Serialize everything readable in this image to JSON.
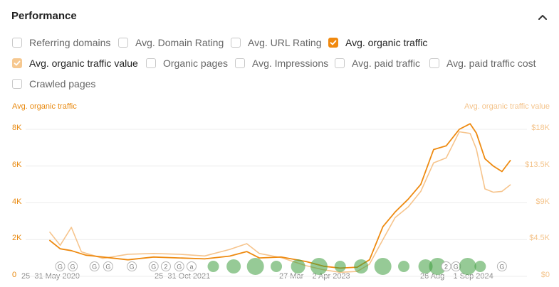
{
  "panel": {
    "title": "Performance"
  },
  "metrics": [
    {
      "label": "Referring domains",
      "checked": false
    },
    {
      "label": "Avg. Domain Rating",
      "checked": false
    },
    {
      "label": "Avg. URL Rating",
      "checked": false
    },
    {
      "label": "Avg. organic traffic",
      "checked": true
    },
    {
      "label": "Avg. organic traffic value",
      "checked": true
    },
    {
      "label": "Organic pages",
      "checked": false
    },
    {
      "label": "Avg. Impressions",
      "checked": false
    },
    {
      "label": "Avg. paid traffic",
      "checked": false
    },
    {
      "label": "Avg. paid traffic cost",
      "checked": false
    },
    {
      "label": "Crawled pages",
      "checked": false
    }
  ],
  "colors": {
    "traffic": "#ee8a10",
    "traffic_value": "#f6c48c",
    "annotation_green": "#3f9e3f"
  },
  "chart_data": {
    "type": "line",
    "y_left_label": "Avg. organic traffic",
    "y_right_label": "Avg. organic traffic value",
    "y_left_ticks": [
      "0",
      "2K",
      "4K",
      "6K",
      "8K"
    ],
    "y_right_ticks": [
      "$0",
      "$4.5K",
      "$9K",
      "$13.5K",
      "$18K"
    ],
    "ylim_left": [
      0,
      8000
    ],
    "ylim_right": [
      0,
      18000
    ],
    "x_labels": [
      "25–31 May 2020",
      "25–31 Oct 2021",
      "27 Mar – 2 Apr 2023",
      "26 Aug – 1 Sep 2024"
    ],
    "xlim": [
      "2020-05-25",
      "2024-12-30"
    ],
    "grid": true,
    "series": [
      {
        "name": "Avg. organic traffic",
        "axis": "left",
        "points": [
          [
            "2020-05-25",
            1950
          ],
          [
            "2020-07-01",
            1500
          ],
          [
            "2020-08-10",
            1400
          ],
          [
            "2020-10-01",
            1150
          ],
          [
            "2020-12-01",
            1050
          ],
          [
            "2021-03-01",
            900
          ],
          [
            "2021-06-01",
            1050
          ],
          [
            "2021-09-01",
            1000
          ],
          [
            "2021-12-01",
            950
          ],
          [
            "2022-03-01",
            1100
          ],
          [
            "2022-05-01",
            1350
          ],
          [
            "2022-06-15",
            1000
          ],
          [
            "2022-09-01",
            1050
          ],
          [
            "2022-12-01",
            800
          ],
          [
            "2023-02-01",
            550
          ],
          [
            "2023-04-01",
            450
          ],
          [
            "2023-06-01",
            500
          ],
          [
            "2023-07-15",
            900
          ],
          [
            "2023-09-01",
            2700
          ],
          [
            "2023-10-15",
            3500
          ],
          [
            "2023-12-01",
            4200
          ],
          [
            "2024-01-15",
            5000
          ],
          [
            "2024-03-01",
            6900
          ],
          [
            "2024-04-15",
            7100
          ],
          [
            "2024-06-01",
            8000
          ],
          [
            "2024-07-10",
            8300
          ],
          [
            "2024-08-01",
            7800
          ],
          [
            "2024-09-01",
            6400
          ],
          [
            "2024-10-01",
            6000
          ],
          [
            "2024-11-01",
            5700
          ],
          [
            "2024-12-01",
            6300
          ]
        ]
      },
      {
        "name": "Avg. organic traffic value",
        "axis": "right",
        "points": [
          [
            "2020-05-25",
            5400
          ],
          [
            "2020-07-01",
            3800
          ],
          [
            "2020-08-10",
            6000
          ],
          [
            "2020-09-15",
            3000
          ],
          [
            "2020-12-01",
            2200
          ],
          [
            "2021-03-01",
            2700
          ],
          [
            "2021-06-01",
            2800
          ],
          [
            "2021-09-01",
            2700
          ],
          [
            "2021-12-01",
            2500
          ],
          [
            "2022-03-01",
            3300
          ],
          [
            "2022-05-01",
            4000
          ],
          [
            "2022-06-15",
            2800
          ],
          [
            "2022-09-01",
            2300
          ],
          [
            "2022-12-01",
            1300
          ],
          [
            "2023-02-01",
            800
          ],
          [
            "2023-04-01",
            500
          ],
          [
            "2023-06-01",
            600
          ],
          [
            "2023-07-15",
            1500
          ],
          [
            "2023-09-01",
            4500
          ],
          [
            "2023-10-15",
            7200
          ],
          [
            "2023-12-01",
            8500
          ],
          [
            "2024-01-15",
            10400
          ],
          [
            "2024-03-01",
            13900
          ],
          [
            "2024-04-15",
            14500
          ],
          [
            "2024-06-01",
            17700
          ],
          [
            "2024-07-10",
            17500
          ],
          [
            "2024-08-01",
            15600
          ],
          [
            "2024-09-01",
            10700
          ],
          [
            "2024-10-01",
            10300
          ],
          [
            "2024-11-01",
            10400
          ],
          [
            "2024-12-01",
            11200
          ]
        ]
      }
    ],
    "annotations": [
      {
        "date": "2020-07-01",
        "label": "G"
      },
      {
        "date": "2020-08-15",
        "label": "G"
      },
      {
        "date": "2020-11-01",
        "label": "G"
      },
      {
        "date": "2020-12-20",
        "label": "G"
      },
      {
        "date": "2021-03-15",
        "label": "G"
      },
      {
        "date": "2021-06-01",
        "label": "G"
      },
      {
        "date": "2021-07-15",
        "label": "2"
      },
      {
        "date": "2021-09-01",
        "label": "G"
      },
      {
        "date": "2021-10-15",
        "label": "a"
      },
      {
        "date": "2022-01-01",
        "label": ""
      },
      {
        "date": "2022-03-15",
        "label": ""
      },
      {
        "date": "2022-06-01",
        "label": ""
      },
      {
        "date": "2022-08-15",
        "label": ""
      },
      {
        "date": "2022-11-01",
        "label": ""
      },
      {
        "date": "2023-01-15",
        "label": ""
      },
      {
        "date": "2023-04-01",
        "label": ""
      },
      {
        "date": "2023-06-15",
        "label": ""
      },
      {
        "date": "2023-09-01",
        "label": ""
      },
      {
        "date": "2023-11-15",
        "label": ""
      },
      {
        "date": "2024-02-01",
        "label": ""
      },
      {
        "date": "2024-03-15",
        "label": ""
      },
      {
        "date": "2024-04-15",
        "label": "2"
      },
      {
        "date": "2024-05-20",
        "label": "G"
      },
      {
        "date": "2024-07-01",
        "label": ""
      },
      {
        "date": "2024-08-15",
        "label": ""
      },
      {
        "date": "2024-11-01",
        "label": "G"
      }
    ]
  }
}
